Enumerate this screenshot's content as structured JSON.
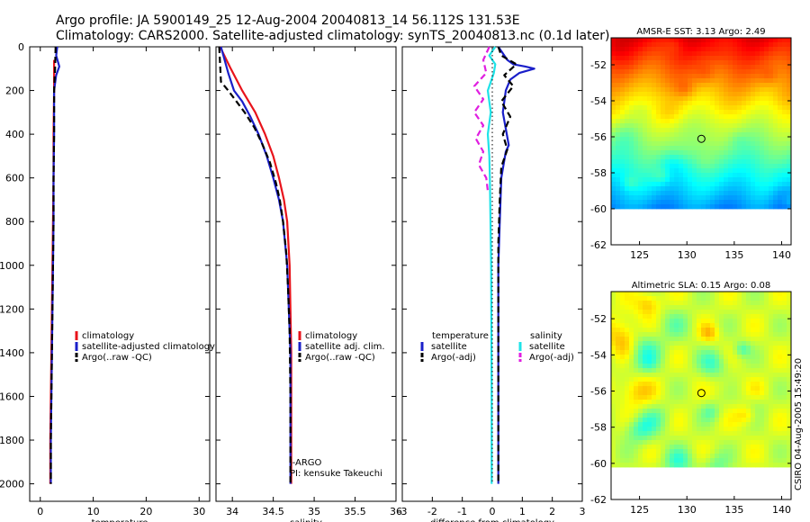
{
  "titles": {
    "line1": "Argo profile: JA 5900149_25 12-Aug-2004 20040813_14 56.112S 131.53E",
    "line2": "Climatology: CARS2000. Satellite-adjusted climatology: synTS_20040813.nc (0.1d later)"
  },
  "credit": "CSIRO 04-Aug-2005 15:49:20",
  "colors": {
    "red": "#e8131b",
    "blue": "#1a1fc9",
    "black": "#000000",
    "cyan": "#1ee3e8",
    "magenta": "#e01ee0"
  },
  "chart_data": [
    {
      "type": "line",
      "name": "temperature",
      "xlabel": "temperature",
      "ylabel": "",
      "xlim": [
        -2,
        32
      ],
      "ylim": [
        2080,
        0
      ],
      "xticks": [
        "0",
        "10",
        "20",
        "30"
      ],
      "xtick_values": [
        0,
        10,
        20,
        30
      ],
      "yticks": [
        "0",
        "200",
        "400",
        "600",
        "800",
        "1000",
        "1200",
        "1400",
        "1600",
        "1800",
        "2000"
      ],
      "ytick_values": [
        0,
        200,
        400,
        600,
        800,
        1000,
        1200,
        1400,
        1600,
        1800,
        2000
      ],
      "series": [
        {
          "name": "climatology",
          "color": "red",
          "dash": false,
          "x": [
            2.6,
            2.6,
            2.5,
            2.5,
            2.4,
            2.3,
            2.2,
            2.1,
            2.0,
            1.9,
            1.9
          ],
          "y": [
            60,
            200,
            400,
            600,
            800,
            1000,
            1200,
            1400,
            1600,
            1800,
            2000
          ]
        },
        {
          "name": "satellite-adjusted climatology",
          "color": "blue",
          "dash": false,
          "x": [
            3.2,
            3.0,
            3.6,
            3.0,
            2.6,
            2.6,
            2.5,
            2.5,
            2.4,
            2.3,
            2.2,
            2.1,
            2.0,
            2.0
          ],
          "y": [
            0,
            40,
            90,
            130,
            200,
            400,
            600,
            800,
            1000,
            1200,
            1400,
            1600,
            1800,
            2000
          ]
        },
        {
          "name": "Argo(..raw -QC)",
          "color": "black",
          "dash": true,
          "x": [
            2.9,
            2.8,
            2.6,
            2.6,
            2.5,
            2.5,
            2.4,
            2.3,
            2.2,
            2.1,
            2.0,
            2.0
          ],
          "y": [
            0,
            100,
            200,
            400,
            600,
            800,
            1000,
            1200,
            1400,
            1600,
            1800,
            2000
          ]
        }
      ],
      "legend": {
        "placement": "bottom-right",
        "entries": [
          {
            "label": "climatology",
            "color": "red",
            "dash": false
          },
          {
            "label": "satellite-adjusted climatology",
            "color": "blue",
            "dash": false
          },
          {
            "label": "Argo(..raw -QC)",
            "color": "black",
            "dash": true
          }
        ]
      }
    },
    {
      "type": "line",
      "name": "salinity",
      "xlabel": "salinity",
      "ylabel": "",
      "xlim": [
        33.8,
        36.0
      ],
      "ylim": [
        2080,
        0
      ],
      "xticks": [
        "34",
        "34.5",
        "35",
        "35.5",
        "36"
      ],
      "xtick_values": [
        34,
        34.5,
        35,
        35.5,
        36
      ],
      "yticks": [],
      "ytick_values": [],
      "series": [
        {
          "name": "climatology",
          "color": "red",
          "dash": false,
          "x": [
            33.85,
            33.98,
            34.12,
            34.28,
            34.4,
            34.5,
            34.57,
            34.63,
            34.67,
            34.7,
            34.71,
            34.72,
            34.72,
            34.72
          ],
          "y": [
            0,
            100,
            200,
            300,
            400,
            500,
            600,
            700,
            800,
            1000,
            1200,
            1400,
            1700,
            2000
          ]
        },
        {
          "name": "satellite adj. clim.",
          "color": "blue",
          "dash": false,
          "x": [
            33.86,
            33.95,
            34.02,
            34.12,
            34.22,
            34.32,
            34.42,
            34.5,
            34.57,
            34.62,
            34.67,
            34.69,
            34.71,
            34.71,
            34.71
          ],
          "y": [
            0,
            120,
            200,
            250,
            320,
            400,
            500,
            600,
            700,
            800,
            1000,
            1200,
            1400,
            1700,
            2000
          ]
        },
        {
          "name": "Argo(..raw -QC)",
          "color": "black",
          "dash": true,
          "x": [
            33.84,
            33.86,
            33.95,
            34.05,
            34.15,
            34.27,
            34.36,
            34.46,
            34.53,
            34.58,
            34.62,
            34.66,
            34.68,
            34.7,
            34.71,
            34.71
          ],
          "y": [
            0,
            160,
            200,
            250,
            300,
            370,
            440,
            530,
            620,
            700,
            800,
            950,
            1100,
            1300,
            1600,
            2000
          ]
        }
      ],
      "legend": {
        "placement": "bottom-right",
        "entries": [
          {
            "label": "climatology",
            "color": "red",
            "dash": false
          },
          {
            "label": "satellite adj. clim.",
            "color": "blue",
            "dash": false
          },
          {
            "label": "Argo(..raw -QC)",
            "color": "black",
            "dash": true
          }
        ]
      },
      "annotation": {
        "line1": "J-ARGO",
        "line2": "PI: kensuke Takeuchi"
      }
    },
    {
      "type": "line",
      "name": "difference from climatology",
      "xlabel": "difference from climatology",
      "ylabel": "",
      "xlim": [
        -3,
        3
      ],
      "ylim": [
        2080,
        0
      ],
      "xticks": [
        "-3",
        "-2",
        "-1",
        "0",
        "1",
        "2",
        "3"
      ],
      "xtick_values": [
        -3,
        -2,
        -1,
        0,
        1,
        2,
        3
      ],
      "yticks": [],
      "ytick_values": [],
      "series": [
        {
          "name": "temperature satellite",
          "color": "blue",
          "dash": false,
          "x": [
            0.2,
            0.35,
            0.5,
            0.7,
            1.1,
            1.4,
            0.9,
            0.6,
            0.45,
            0.35,
            0.55,
            0.45,
            0.4,
            0.3,
            0.25,
            0.2,
            0.2,
            0.2,
            0.2,
            0.2
          ],
          "y": [
            0,
            30,
            60,
            80,
            90,
            100,
            120,
            150,
            200,
            300,
            450,
            480,
            520,
            600,
            800,
            1000,
            1200,
            1400,
            1700,
            2000
          ]
        },
        {
          "name": "temperature Argo(-adj)",
          "color": "black",
          "dash": true,
          "x": [
            0.2,
            0.3,
            0.8,
            0.4,
            0.7,
            0.3,
            0.6,
            0.35,
            0.5,
            0.3,
            0.25,
            0.2,
            0.2,
            0.2,
            0.2
          ],
          "y": [
            0,
            40,
            80,
            130,
            180,
            250,
            320,
            400,
            470,
            550,
            700,
            900,
            1200,
            1600,
            2000
          ]
        },
        {
          "name": "salinity satellite",
          "color": "cyan",
          "dash": false,
          "x": [
            0.1,
            -0.1,
            0.1,
            0.05,
            -0.15,
            -0.05,
            -0.15,
            -0.1,
            -0.08,
            -0.06,
            -0.04,
            -0.03,
            -0.02,
            -0.02
          ],
          "y": [
            0,
            40,
            80,
            120,
            200,
            300,
            400,
            500,
            600,
            800,
            1000,
            1300,
            1600,
            2000
          ]
        },
        {
          "name": "salinity Argo(-adj)",
          "color": "magenta",
          "dash": true,
          "x": [
            -0.1,
            -0.3,
            -0.2,
            -0.6,
            -0.3,
            -0.6,
            -0.3,
            -0.55,
            -0.3,
            -0.45,
            -0.2,
            -0.15
          ],
          "y": [
            0,
            60,
            120,
            180,
            240,
            300,
            360,
            420,
            480,
            540,
            600,
            660
          ]
        },
        {
          "name": "zero reference",
          "color": "black",
          "dash": true,
          "x": [
            0,
            0
          ],
          "y": [
            0,
            2000
          ]
        }
      ],
      "legend": {
        "placement": "bottom",
        "entries": [
          {
            "label": "temperature",
            "color": "",
            "dash": false
          },
          {
            "label": "satellite",
            "color": "blue",
            "dash": false
          },
          {
            "label": "Argo(-adj)",
            "color": "black",
            "dash": true
          },
          {
            "label": "salinity",
            "color": "",
            "dash": false
          },
          {
            "label": "satellite",
            "color": "cyan",
            "dash": false
          },
          {
            "label": "Argo(-adj)",
            "color": "magenta",
            "dash": true
          }
        ]
      }
    },
    {
      "type": "heatmap",
      "name": "AMSR-E SST",
      "title": "AMSR-E SST: 3.13 Argo: 2.49",
      "xlim": [
        122,
        141
      ],
      "ylim": [
        -62,
        -50.5
      ],
      "xticks": [
        "125",
        "130",
        "135",
        "140"
      ],
      "xtick_values": [
        125,
        130,
        135,
        140
      ],
      "yticks": [
        "-52",
        "-54",
        "-56",
        "-58",
        "-60",
        "-62"
      ],
      "ytick_values": [
        -52,
        -54,
        -56,
        -58,
        -60,
        -62
      ],
      "data_lat_range": [
        -60,
        -50.5
      ],
      "argo_position": {
        "lon": 131.53,
        "lat": -56.112
      }
    },
    {
      "type": "heatmap",
      "name": "Altimetric SLA",
      "title": "Altimetric SLA: 0.15 Argo: 0.08",
      "xlim": [
        122,
        141
      ],
      "ylim": [
        -62,
        -50.5
      ],
      "xticks": [
        "125",
        "130",
        "135",
        "140"
      ],
      "xtick_values": [
        125,
        130,
        135,
        140
      ],
      "yticks": [
        "-52",
        "-54",
        "-56",
        "-58",
        "-60",
        "-62"
      ],
      "ytick_values": [
        -52,
        -54,
        -56,
        -58,
        -60,
        -62
      ],
      "data_lat_range": [
        -60,
        -50.5
      ],
      "argo_position": {
        "lon": 131.53,
        "lat": -56.112
      }
    }
  ]
}
